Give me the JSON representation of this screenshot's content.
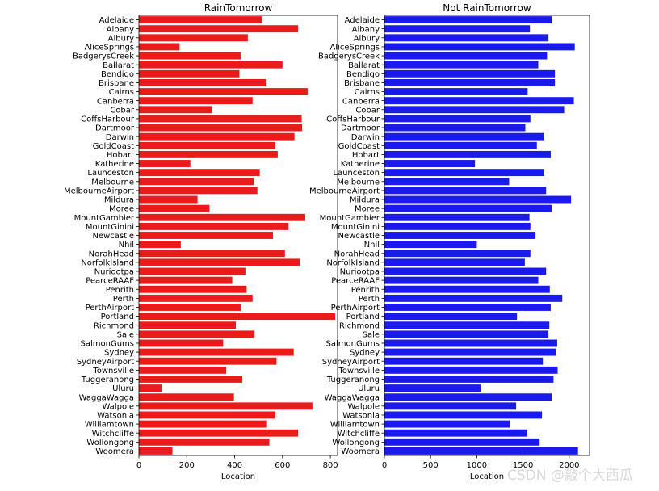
{
  "watermark": "CSDN @敲个大西瓜",
  "colors": {
    "rain": "#ec1b1b",
    "norain": "#1a1aec"
  },
  "chart_data": [
    {
      "type": "bar",
      "orientation": "horizontal",
      "title": "RainTomorrow",
      "xlabel": "Location",
      "ylabel": "",
      "xlim": [
        0,
        830
      ],
      "xticks": [
        0,
        200,
        400,
        600,
        800
      ],
      "categories": [
        "Adelaide",
        "Albany",
        "Albury",
        "AliceSprings",
        "BadgerysCreek",
        "Ballarat",
        "Bendigo",
        "Brisbane",
        "Cairns",
        "Canberra",
        "Cobar",
        "CoffsHarbour",
        "Dartmoor",
        "Darwin",
        "GoldCoast",
        "Hobart",
        "Katherine",
        "Launceston",
        "Melbourne",
        "MelbourneAirport",
        "Mildura",
        "Moree",
        "MountGambier",
        "MountGinini",
        "Newcastle",
        "Nhil",
        "NorahHead",
        "NorfolkIsland",
        "Nuriootpa",
        "PearceRAAF",
        "Penrith",
        "Perth",
        "PerthAirport",
        "Portland",
        "Richmond",
        "Sale",
        "SalmonGums",
        "Sydney",
        "SydneyAirport",
        "Townsville",
        "Tuggeranong",
        "Uluru",
        "WaggaWagga",
        "Walpole",
        "Watsonia",
        "Williamtown",
        "Witchcliffe",
        "Wollongong",
        "Woomera"
      ],
      "values": [
        515,
        665,
        455,
        170,
        425,
        600,
        420,
        530,
        705,
        475,
        305,
        680,
        682,
        650,
        570,
        580,
        215,
        505,
        480,
        495,
        245,
        295,
        695,
        625,
        560,
        175,
        610,
        672,
        445,
        390,
        450,
        475,
        425,
        820,
        405,
        483,
        352,
        647,
        575,
        365,
        432,
        95,
        397,
        725,
        570,
        532,
        665,
        545,
        140
      ]
    },
    {
      "type": "bar",
      "orientation": "horizontal",
      "title": "Not RainTomorrow",
      "xlabel": "Location",
      "ylabel": "",
      "xlim": [
        0,
        2220
      ],
      "xticks": [
        0,
        500,
        1000,
        1500,
        2000
      ],
      "categories": [
        "Adelaide",
        "Albany",
        "Albury",
        "AliceSprings",
        "BadgerysCreek",
        "Ballarat",
        "Bendigo",
        "Brisbane",
        "Cairns",
        "Canberra",
        "Cobar",
        "CoffsHarbour",
        "Dartmoor",
        "Darwin",
        "GoldCoast",
        "Hobart",
        "Katherine",
        "Launceston",
        "Melbourne",
        "MelbourneAirport",
        "Mildura",
        "Moree",
        "MountGambier",
        "MountGinini",
        "Newcastle",
        "Nhil",
        "NorahHead",
        "NorfolkIsland",
        "Nuriootpa",
        "PearceRAAF",
        "Penrith",
        "Perth",
        "PerthAirport",
        "Portland",
        "Richmond",
        "Sale",
        "SalmonGums",
        "Sydney",
        "SydneyAirport",
        "Townsville",
        "Tuggeranong",
        "Uluru",
        "WaggaWagga",
        "Walpole",
        "Watsonia",
        "Williamtown",
        "Witchcliffe",
        "Wollongong",
        "Woomera"
      ],
      "values": [
        1810,
        1575,
        1775,
        2060,
        1760,
        1665,
        1845,
        1845,
        1550,
        2050,
        1945,
        1580,
        1525,
        1730,
        1650,
        1800,
        980,
        1730,
        1350,
        1750,
        2020,
        1810,
        1570,
        1580,
        1635,
        1000,
        1580,
        1520,
        1750,
        1665,
        1790,
        1925,
        1800,
        1435,
        1785,
        1775,
        1870,
        1855,
        1715,
        1875,
        1830,
        1040,
        1810,
        1425,
        1705,
        1360,
        1545,
        1680,
        2095
      ]
    }
  ]
}
